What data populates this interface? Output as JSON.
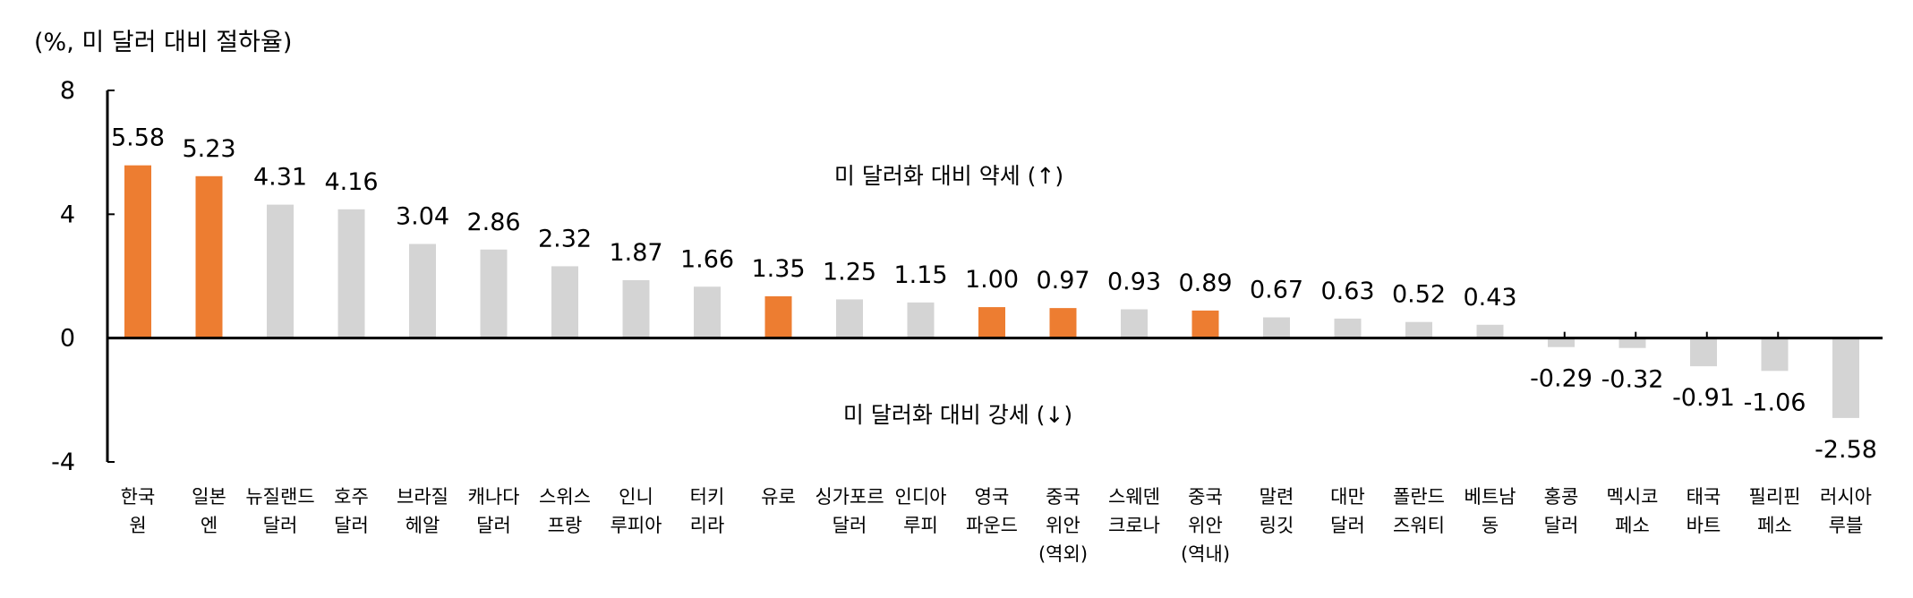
{
  "chart_data": {
    "type": "bar",
    "unit_label": "(%, 미 달러 대비 절하율)",
    "annotations": [
      "미 달러화 대비 약세 (↑)",
      "미 달러화 대비 강세 (↓)"
    ],
    "ylim": [
      -4,
      8
    ],
    "yticks": [
      "8",
      "4",
      "0",
      "-4"
    ],
    "grid": false,
    "colors": {
      "highlight": "#ED7D31",
      "default": "#D4D4D4"
    },
    "categories": [
      [
        "한국",
        "원"
      ],
      [
        "일본",
        "엔"
      ],
      [
        "뉴질랜드",
        "달러"
      ],
      [
        "호주",
        "달러"
      ],
      [
        "브라질",
        "헤알"
      ],
      [
        "캐나다",
        "달러"
      ],
      [
        "스위스",
        "프랑"
      ],
      [
        "인니",
        "루피아"
      ],
      [
        "터키",
        "리라"
      ],
      [
        "유로"
      ],
      [
        "싱가포르",
        "달러"
      ],
      [
        "인디아",
        "루피"
      ],
      [
        "영국",
        "파운드"
      ],
      [
        "중국",
        "위안",
        "(역외)"
      ],
      [
        "스웨덴",
        "크로나"
      ],
      [
        "중국",
        "위안",
        "(역내)"
      ],
      [
        "말련",
        "링깃"
      ],
      [
        "대만",
        "달러"
      ],
      [
        "폴란드",
        "즈워티"
      ],
      [
        "베트남",
        "동"
      ],
      [
        "홍콩",
        "달러"
      ],
      [
        "멕시코",
        "페소"
      ],
      [
        "태국",
        "바트"
      ],
      [
        "필리핀",
        "페소"
      ],
      [
        "러시아",
        "루블"
      ]
    ],
    "values": [
      5.58,
      5.23,
      4.31,
      4.16,
      3.04,
      2.86,
      2.32,
      1.87,
      1.66,
      1.35,
      1.25,
      1.15,
      1.0,
      0.97,
      0.93,
      0.89,
      0.67,
      0.63,
      0.52,
      0.43,
      -0.29,
      -0.32,
      -0.91,
      -1.06,
      -2.58
    ],
    "value_labels": [
      "5.58",
      "5.23",
      "4.31",
      "4.16",
      "3.04",
      "2.86",
      "2.32",
      "1.87",
      "1.66",
      "1.35",
      "1.25",
      "1.15",
      "1.00",
      "0.97",
      "0.93",
      "0.89",
      "0.67",
      "0.63",
      "0.52",
      "0.43",
      "-0.29",
      "-0.32",
      "-0.91",
      "-1.06",
      "-2.58"
    ],
    "highlighted": [
      true,
      true,
      false,
      false,
      false,
      false,
      false,
      false,
      false,
      true,
      false,
      false,
      true,
      true,
      false,
      true,
      false,
      false,
      false,
      false,
      false,
      false,
      false,
      false,
      false
    ]
  }
}
